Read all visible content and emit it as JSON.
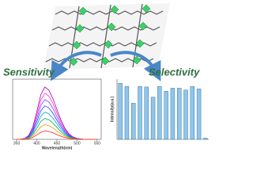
{
  "labels": {
    "left": "Sensitivity",
    "right": "Selectivity"
  },
  "chart_data": [
    {
      "type": "line",
      "xlabel": "Wavelength(nm)",
      "x": [
        350,
        360,
        370,
        380,
        390,
        400,
        410,
        420,
        430,
        440,
        450,
        460,
        470,
        480,
        490,
        500,
        510,
        520,
        530,
        540,
        550
      ],
      "xlim": [
        340,
        560
      ],
      "xticks": [
        350,
        400,
        450,
        500,
        550
      ],
      "ylim": [
        0,
        115
      ],
      "series": [
        {
          "color": "#b000b0",
          "values": [
            0,
            0.3,
            1.8,
            7.7,
            23.7,
            52.7,
            85.2,
            100,
            93.9,
            77.9,
            57,
            36.8,
            21,
            10.5,
            4.7,
            1.8,
            0.6,
            0,
            0,
            0,
            0
          ]
        },
        {
          "color": "#ff33cc",
          "values": [
            0,
            0.3,
            1.6,
            6.8,
            20.9,
            46.4,
            75,
            88,
            82.6,
            68.6,
            50.2,
            32.4,
            18.5,
            9.2,
            4.1,
            1.6,
            0.5,
            0,
            0,
            0,
            0
          ]
        },
        {
          "color": "#7a3cff",
          "values": [
            0,
            0.2,
            1.4,
            5.9,
            18,
            40.1,
            64.8,
            76,
            71.4,
            59.2,
            43.3,
            28,
            16,
            8,
            3.6,
            1.4,
            0.5,
            0,
            0,
            0,
            0
          ]
        },
        {
          "color": "#1f3fff",
          "values": [
            0,
            0.2,
            1.2,
            4.9,
            15.2,
            33.7,
            54.5,
            64,
            60.1,
            49.9,
            36.5,
            23.6,
            13.4,
            6.7,
            3,
            1.2,
            0.4,
            0,
            0,
            0,
            0
          ]
        },
        {
          "color": "#00a0e0",
          "values": [
            0,
            0.2,
            0.9,
            4,
            12.3,
            27.4,
            44.3,
            52,
            48.8,
            40.5,
            29.6,
            19.1,
            10.9,
            5.5,
            2.4,
            0.9,
            0.3,
            0,
            0,
            0,
            0
          ]
        },
        {
          "color": "#00b050",
          "values": [
            0,
            0.1,
            0.7,
            3.1,
            9.5,
            21.1,
            34.1,
            40,
            37.6,
            31.2,
            22.8,
            14.7,
            8.4,
            4.2,
            1.9,
            0.7,
            0.2,
            0,
            0,
            0,
            0
          ]
        },
        {
          "color": "#e0a000",
          "values": [
            0,
            0.1,
            0.5,
            2.2,
            6.6,
            14.8,
            23.9,
            28,
            26.3,
            21.8,
            16,
            10.3,
            5.9,
            2.9,
            1.3,
            0.5,
            0.2,
            0,
            0,
            0,
            0
          ]
        },
        {
          "color": "#ff2020",
          "values": [
            0,
            0,
            0.3,
            1.2,
            3.8,
            8.4,
            13.6,
            16,
            15,
            12.5,
            9.1,
            5.9,
            3.4,
            1.7,
            0.8,
            0.3,
            0.1,
            0,
            0,
            0,
            0
          ]
        }
      ]
    },
    {
      "type": "bar",
      "ylabel": "Intensity(a.u.)",
      "color": "#8ec6ec",
      "ylim": [
        0,
        1
      ],
      "values": [
        0.93,
        0.88,
        0.6,
        0.88,
        0.87,
        0.7,
        0.88,
        0.8,
        0.85,
        0.85,
        0.82,
        0.88,
        0.84,
        0.02
      ]
    }
  ]
}
